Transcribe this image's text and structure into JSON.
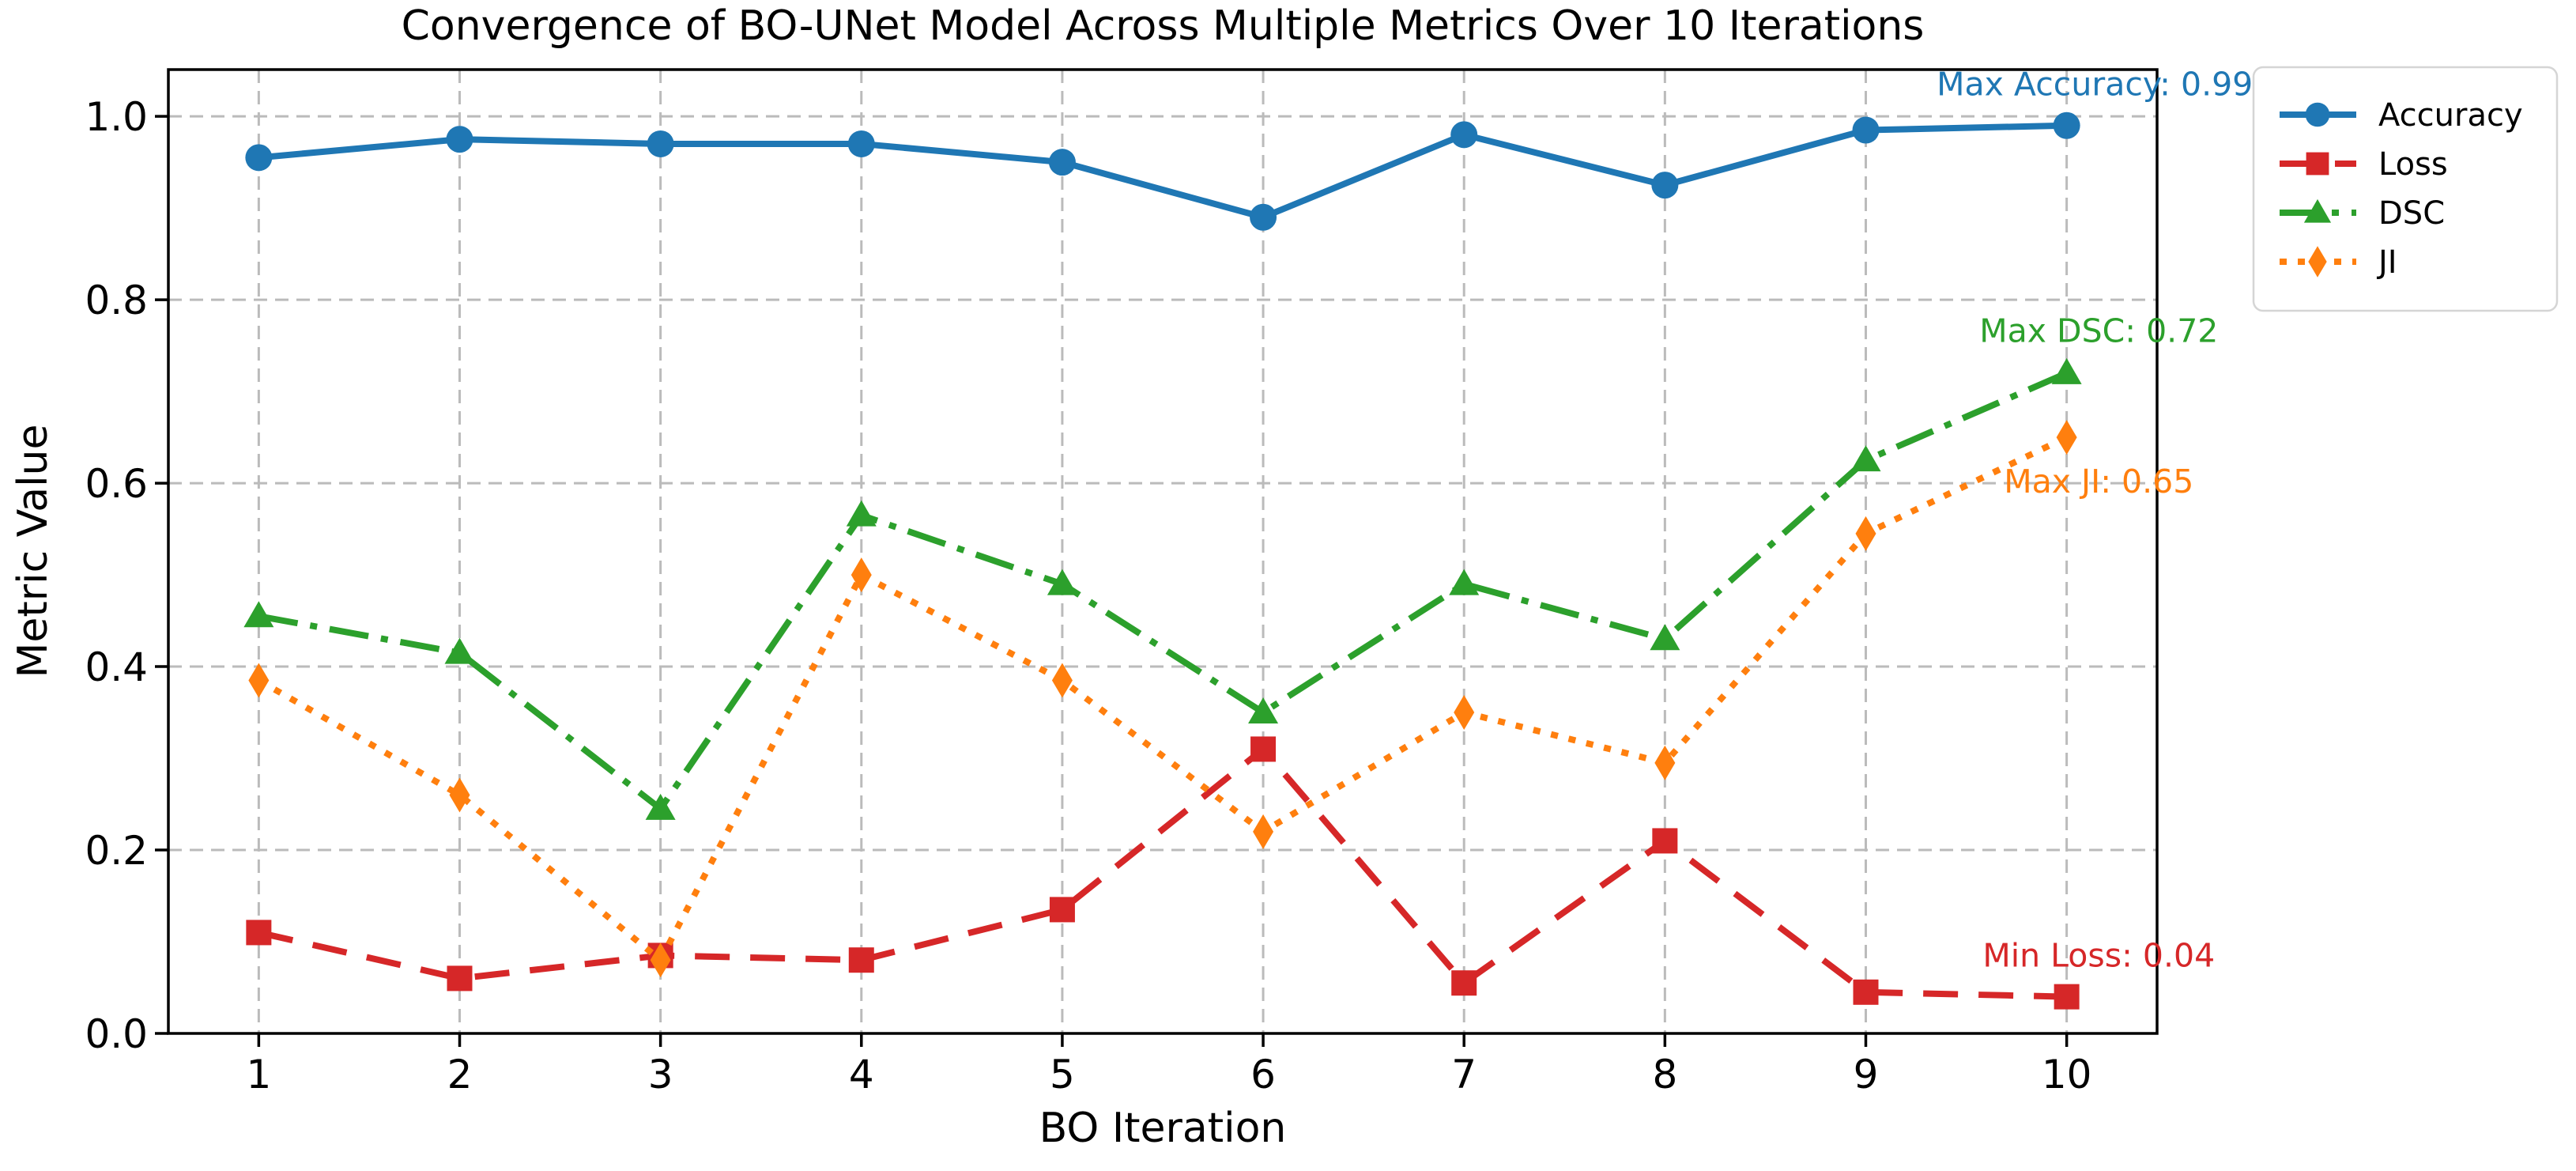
{
  "chart_data": {
    "type": "line",
    "title": "Convergence of BO-UNet Model Across Multiple Metrics Over 10 Iterations",
    "xlabel": "BO Iteration",
    "ylabel": "Metric Value",
    "x": [
      1,
      2,
      3,
      4,
      5,
      6,
      7,
      8,
      9,
      10
    ],
    "xtick_labels": [
      "1",
      "2",
      "3",
      "4",
      "5",
      "6",
      "7",
      "8",
      "9",
      "10"
    ],
    "yticks": [
      0.0,
      0.2,
      0.4,
      0.6,
      0.8,
      1.0
    ],
    "ytick_labels": [
      "0.0",
      "0.2",
      "0.4",
      "0.6",
      "0.8",
      "1.0"
    ],
    "xlim": [
      0.55,
      10.45
    ],
    "ylim": [
      0,
      1.051
    ],
    "grid": true,
    "grid_on": "both, dashed gray",
    "background": "#ffffff",
    "axis_color": "#000000",
    "grid_color": "#bbbbbb",
    "legend_position": "upper right, outside plot area",
    "series": [
      {
        "name": "Accuracy",
        "color": "#1f77b4",
        "line_style": "solid",
        "marker": "circle",
        "values": [
          0.955,
          0.975,
          0.97,
          0.97,
          0.95,
          0.89,
          0.98,
          0.925,
          0.985,
          0.99
        ]
      },
      {
        "name": "Loss",
        "color": "#d62728",
        "line_style": "dashed",
        "marker": "square",
        "values": [
          0.11,
          0.06,
          0.085,
          0.08,
          0.135,
          0.31,
          0.055,
          0.21,
          0.045,
          0.04
        ]
      },
      {
        "name": "DSC",
        "color": "#2ca02c",
        "line_style": "dashdot",
        "marker": "triangle",
        "values": [
          0.455,
          0.415,
          0.245,
          0.565,
          0.49,
          0.35,
          0.49,
          0.43,
          0.625,
          0.72
        ]
      },
      {
        "name": "JI",
        "color": "#ff7f0e",
        "line_style": "dotted",
        "marker": "diamond",
        "values": [
          0.385,
          0.26,
          0.08,
          0.5,
          0.385,
          0.22,
          0.35,
          0.295,
          0.545,
          0.65
        ]
      }
    ],
    "annotations": [
      {
        "text": "Max Accuracy: 0.99",
        "color": "#1f77b4",
        "x": 10.14,
        "y": 1.035
      },
      {
        "text": "Max DSC: 0.72",
        "color": "#2ca02c",
        "x": 10.16,
        "y": 0.766
      },
      {
        "text": "Max JI: 0.65",
        "color": "#ff7f0e",
        "x": 10.16,
        "y": 0.602
      },
      {
        "text": "Min Loss: 0.04",
        "color": "#d62728",
        "x": 10.16,
        "y": 0.085
      }
    ]
  }
}
